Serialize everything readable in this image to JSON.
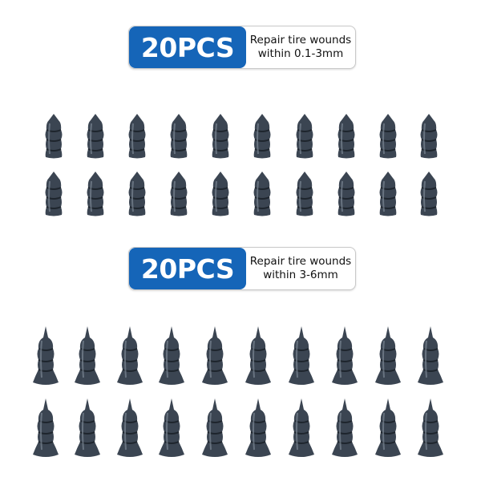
{
  "sections": [
    {
      "count": "20PCS",
      "line1": "Repair tire wounds",
      "line2": "within 0.1-3mm",
      "size": "small",
      "rows": 2,
      "cols": 10
    },
    {
      "count": "20PCS",
      "line1": "Repair tire wounds",
      "line2": "within 3-6mm",
      "size": "large",
      "rows": 2,
      "cols": 10
    }
  ],
  "colors": {
    "badge": "#1565b8",
    "nail": "#3b4552"
  }
}
